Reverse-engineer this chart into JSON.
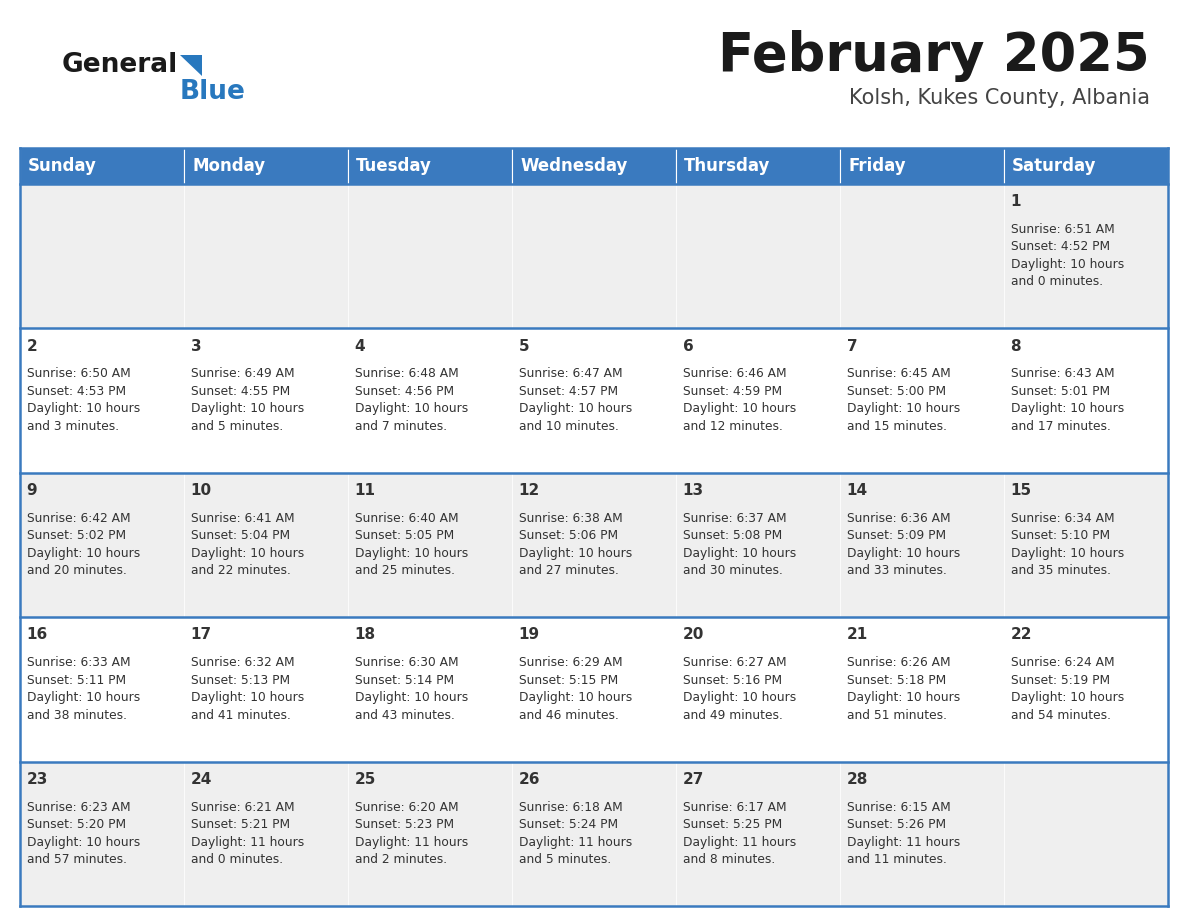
{
  "title": "February 2025",
  "subtitle": "Kolsh, Kukes County, Albania",
  "header_bg": "#3a7abf",
  "header_text": "#ffffff",
  "days_of_week": [
    "Sunday",
    "Monday",
    "Tuesday",
    "Wednesday",
    "Thursday",
    "Friday",
    "Saturday"
  ],
  "odd_row_bg": "#efefef",
  "even_row_bg": "#ffffff",
  "cell_text_color": "#333333",
  "border_color": "#3a7abf",
  "day_number_color": "#333333",
  "calendar_data": [
    [
      {
        "day": null,
        "text": ""
      },
      {
        "day": null,
        "text": ""
      },
      {
        "day": null,
        "text": ""
      },
      {
        "day": null,
        "text": ""
      },
      {
        "day": null,
        "text": ""
      },
      {
        "day": null,
        "text": ""
      },
      {
        "day": 1,
        "text": "Sunrise: 6:51 AM\nSunset: 4:52 PM\nDaylight: 10 hours\nand 0 minutes."
      }
    ],
    [
      {
        "day": 2,
        "text": "Sunrise: 6:50 AM\nSunset: 4:53 PM\nDaylight: 10 hours\nand 3 minutes."
      },
      {
        "day": 3,
        "text": "Sunrise: 6:49 AM\nSunset: 4:55 PM\nDaylight: 10 hours\nand 5 minutes."
      },
      {
        "day": 4,
        "text": "Sunrise: 6:48 AM\nSunset: 4:56 PM\nDaylight: 10 hours\nand 7 minutes."
      },
      {
        "day": 5,
        "text": "Sunrise: 6:47 AM\nSunset: 4:57 PM\nDaylight: 10 hours\nand 10 minutes."
      },
      {
        "day": 6,
        "text": "Sunrise: 6:46 AM\nSunset: 4:59 PM\nDaylight: 10 hours\nand 12 minutes."
      },
      {
        "day": 7,
        "text": "Sunrise: 6:45 AM\nSunset: 5:00 PM\nDaylight: 10 hours\nand 15 minutes."
      },
      {
        "day": 8,
        "text": "Sunrise: 6:43 AM\nSunset: 5:01 PM\nDaylight: 10 hours\nand 17 minutes."
      }
    ],
    [
      {
        "day": 9,
        "text": "Sunrise: 6:42 AM\nSunset: 5:02 PM\nDaylight: 10 hours\nand 20 minutes."
      },
      {
        "day": 10,
        "text": "Sunrise: 6:41 AM\nSunset: 5:04 PM\nDaylight: 10 hours\nand 22 minutes."
      },
      {
        "day": 11,
        "text": "Sunrise: 6:40 AM\nSunset: 5:05 PM\nDaylight: 10 hours\nand 25 minutes."
      },
      {
        "day": 12,
        "text": "Sunrise: 6:38 AM\nSunset: 5:06 PM\nDaylight: 10 hours\nand 27 minutes."
      },
      {
        "day": 13,
        "text": "Sunrise: 6:37 AM\nSunset: 5:08 PM\nDaylight: 10 hours\nand 30 minutes."
      },
      {
        "day": 14,
        "text": "Sunrise: 6:36 AM\nSunset: 5:09 PM\nDaylight: 10 hours\nand 33 minutes."
      },
      {
        "day": 15,
        "text": "Sunrise: 6:34 AM\nSunset: 5:10 PM\nDaylight: 10 hours\nand 35 minutes."
      }
    ],
    [
      {
        "day": 16,
        "text": "Sunrise: 6:33 AM\nSunset: 5:11 PM\nDaylight: 10 hours\nand 38 minutes."
      },
      {
        "day": 17,
        "text": "Sunrise: 6:32 AM\nSunset: 5:13 PM\nDaylight: 10 hours\nand 41 minutes."
      },
      {
        "day": 18,
        "text": "Sunrise: 6:30 AM\nSunset: 5:14 PM\nDaylight: 10 hours\nand 43 minutes."
      },
      {
        "day": 19,
        "text": "Sunrise: 6:29 AM\nSunset: 5:15 PM\nDaylight: 10 hours\nand 46 minutes."
      },
      {
        "day": 20,
        "text": "Sunrise: 6:27 AM\nSunset: 5:16 PM\nDaylight: 10 hours\nand 49 minutes."
      },
      {
        "day": 21,
        "text": "Sunrise: 6:26 AM\nSunset: 5:18 PM\nDaylight: 10 hours\nand 51 minutes."
      },
      {
        "day": 22,
        "text": "Sunrise: 6:24 AM\nSunset: 5:19 PM\nDaylight: 10 hours\nand 54 minutes."
      }
    ],
    [
      {
        "day": 23,
        "text": "Sunrise: 6:23 AM\nSunset: 5:20 PM\nDaylight: 10 hours\nand 57 minutes."
      },
      {
        "day": 24,
        "text": "Sunrise: 6:21 AM\nSunset: 5:21 PM\nDaylight: 11 hours\nand 0 minutes."
      },
      {
        "day": 25,
        "text": "Sunrise: 6:20 AM\nSunset: 5:23 PM\nDaylight: 11 hours\nand 2 minutes."
      },
      {
        "day": 26,
        "text": "Sunrise: 6:18 AM\nSunset: 5:24 PM\nDaylight: 11 hours\nand 5 minutes."
      },
      {
        "day": 27,
        "text": "Sunrise: 6:17 AM\nSunset: 5:25 PM\nDaylight: 11 hours\nand 8 minutes."
      },
      {
        "day": 28,
        "text": "Sunrise: 6:15 AM\nSunset: 5:26 PM\nDaylight: 11 hours\nand 11 minutes."
      },
      {
        "day": null,
        "text": ""
      }
    ]
  ],
  "logo_general_color": "#1a1a1a",
  "logo_blue_color": "#2878be",
  "title_fontsize": 38,
  "subtitle_fontsize": 15,
  "header_fontsize": 12,
  "day_num_fontsize": 11,
  "cell_fontsize": 8.8
}
